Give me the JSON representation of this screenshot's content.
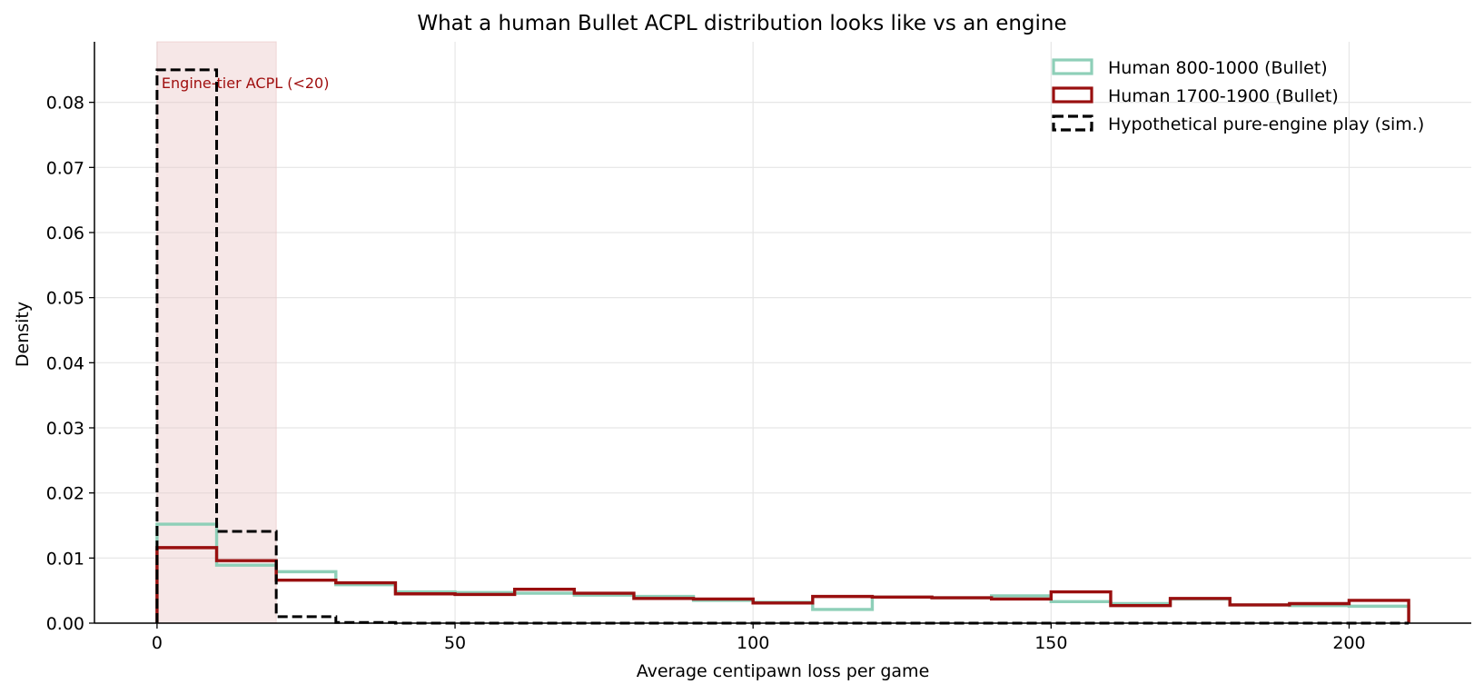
{
  "chart_data": {
    "type": "histogram-step",
    "title": "What a human Bullet ACPL distribution looks like vs an engine",
    "xlabel": "Average centipawn loss per game",
    "ylabel": "Density",
    "xlim": [
      -10.5,
      220.5
    ],
    "ylim": [
      0,
      0.0893
    ],
    "xticks": [
      0,
      50,
      100,
      150,
      200
    ],
    "xtick_labels": [
      "0",
      "50",
      "100",
      "150",
      "200"
    ],
    "yticks": [
      0,
      0.01,
      0.02,
      0.03,
      0.04,
      0.05,
      0.06,
      0.07,
      0.08
    ],
    "ytick_labels": [
      "0.00",
      "0.01",
      "0.02",
      "0.03",
      "0.04",
      "0.05",
      "0.06",
      "0.07",
      "0.08"
    ],
    "grid": true,
    "legend_position": "top-right",
    "bin_edges": [
      0,
      10,
      20,
      30,
      40,
      50,
      60,
      70,
      80,
      90,
      100,
      110,
      120,
      130,
      140,
      150,
      160,
      170,
      180,
      190,
      200,
      210
    ],
    "series": [
      {
        "name": "Human 800-1000 (Bullet)",
        "color": "#8ecfb8",
        "dash": false,
        "values": [
          0.0152,
          0.0089,
          0.0079,
          0.0059,
          0.0048,
          0.0047,
          0.0046,
          0.0043,
          0.0041,
          0.0035,
          0.0032,
          0.0021,
          0.004,
          0.0039,
          0.0042,
          0.0033,
          0.003,
          0.0037,
          0.0028,
          0.0027,
          0.0026
        ]
      },
      {
        "name": "Human 1700-1900 (Bullet)",
        "color": "#990f0f",
        "dash": false,
        "values": [
          0.0116,
          0.0096,
          0.0066,
          0.0062,
          0.0045,
          0.0044,
          0.0052,
          0.0046,
          0.0038,
          0.0037,
          0.0031,
          0.0041,
          0.004,
          0.0039,
          0.0037,
          0.0048,
          0.0027,
          0.0038,
          0.0028,
          0.003,
          0.0035
        ]
      },
      {
        "name": "Hypothetical pure-engine play (sim.)",
        "color": "#000000",
        "dash": true,
        "values": [
          0.085,
          0.0141,
          0.001,
          0.0001,
          0,
          0,
          0,
          0,
          0,
          0,
          0,
          0,
          0,
          0,
          0,
          0,
          0,
          0,
          0,
          0,
          0
        ]
      }
    ],
    "shaded_region": {
      "x": [
        0,
        20
      ],
      "color": "#e8c4c4",
      "label": "Engine-tier ACPL (<20)",
      "label_color": "#a00f0f"
    }
  }
}
